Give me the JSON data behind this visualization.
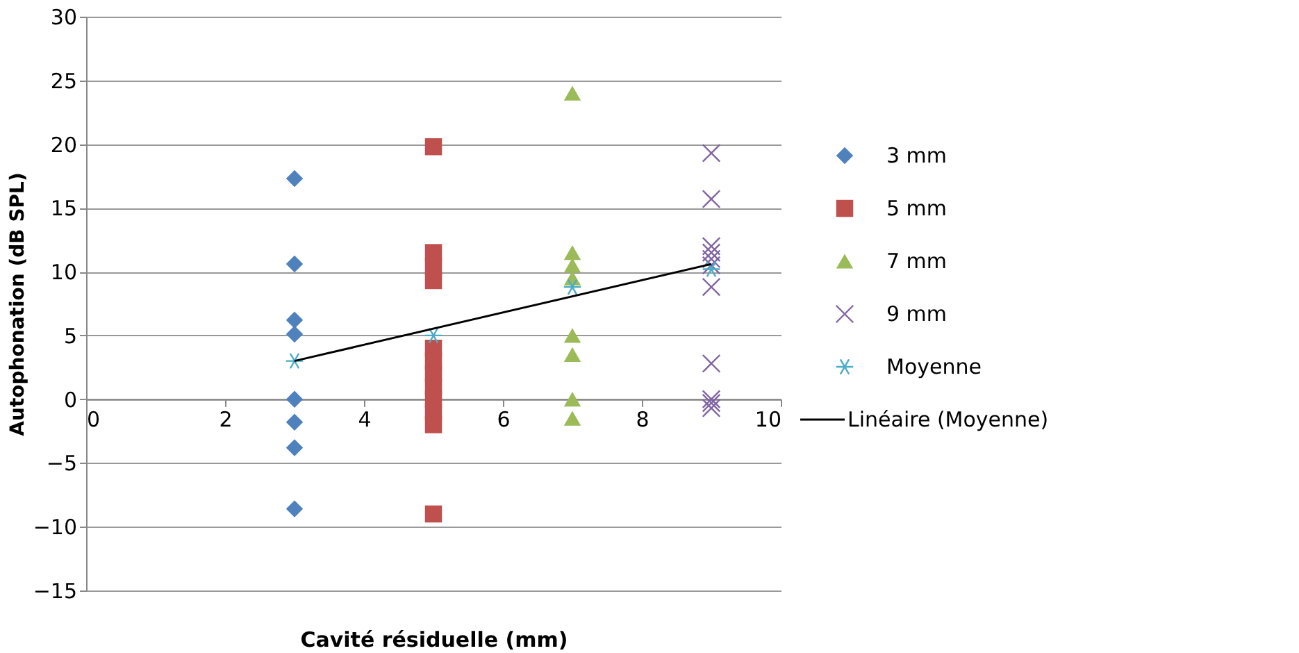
{
  "chart_data": {
    "type": "scatter",
    "xlabel": "Cavité résiduelle (mm)",
    "ylabel": "Autophonation (dB SPL)",
    "xlim": [
      0,
      10
    ],
    "xticks": [
      0,
      2,
      4,
      6,
      8,
      10
    ],
    "ylim": [
      -15,
      30
    ],
    "yticks": [
      -15,
      -10,
      -5,
      0,
      5,
      10,
      15,
      20,
      25,
      30
    ],
    "grid": "y",
    "legend": "right",
    "series": [
      {
        "name": "3 mm",
        "color": "#4f81bd",
        "marker": "diamond",
        "x": [
          3,
          3,
          3,
          3,
          3,
          3,
          3,
          3
        ],
        "values": [
          17.3,
          10.6,
          6.2,
          5.1,
          0,
          -1.8,
          -3.8,
          -8.6
        ]
      },
      {
        "name": "5 mm",
        "color": "#c0504d",
        "marker": "square",
        "x": [
          5,
          5,
          5,
          5,
          5,
          5,
          5,
          5,
          5,
          5,
          5,
          5
        ],
        "values": [
          19.8,
          11.5,
          10.4,
          9.3,
          4,
          3,
          2,
          1,
          0,
          -1,
          -2,
          -9
        ]
      },
      {
        "name": "7 mm",
        "color": "#9bbb59",
        "marker": "triangle",
        "x": [
          7,
          7,
          7,
          7,
          7,
          7,
          7,
          7
        ],
        "values": [
          24,
          11.5,
          10.5,
          9.5,
          5,
          3.5,
          0,
          -1.5
        ]
      },
      {
        "name": "9 mm",
        "color": "#8064a2",
        "marker": "cross",
        "x": [
          9,
          9,
          9,
          9,
          9,
          9,
          9,
          9,
          9,
          9,
          9
        ],
        "values": [
          19.3,
          15.7,
          12,
          11.5,
          11,
          10.5,
          8.8,
          2.8,
          0,
          -0.3,
          -0.7
        ]
      },
      {
        "name": "Moyenne",
        "color": "#4bacc6",
        "marker": "cross",
        "x": [
          3,
          5,
          7,
          9
        ],
        "values": [
          3.0,
          5.0,
          8.8,
          10.2
        ]
      },
      {
        "name": "Linéaire (Moyenne)",
        "color": "#000000",
        "type": "line",
        "marker": "none",
        "x": [
          3,
          9
        ],
        "values": [
          3.0,
          10.6
        ]
      }
    ]
  }
}
